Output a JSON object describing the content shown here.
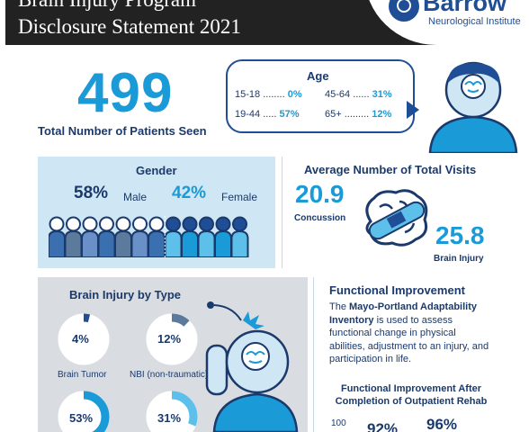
{
  "header": {
    "title_line1": "Brain Injury Program",
    "title_line2": "Disclosure Statement 2021",
    "logo_word": "Barrow",
    "logo_sub": "Neurological Institute"
  },
  "patients": {
    "total": "499",
    "label": "Total Number of Patients Seen"
  },
  "age": {
    "title": "Age",
    "groups": [
      {
        "range": "15-18 ........ ",
        "pct": "0%"
      },
      {
        "range": "45-64 ...... ",
        "pct": "31%"
      },
      {
        "range": "19-44 ..... ",
        "pct": "57%"
      },
      {
        "range": "65+ ......... ",
        "pct": "12%"
      }
    ]
  },
  "gender": {
    "title": "Gender",
    "male_pct": "58%",
    "male_label": "Male",
    "female_pct": "42%",
    "female_label": "Female",
    "people_count": 12,
    "male_people": 7,
    "colors": {
      "male": [
        "#3a6fb0",
        "#5b7a9c",
        "#6a90c8"
      ],
      "female": [
        "#1a9ad6",
        "#5cc0ea"
      ]
    }
  },
  "visits": {
    "title": "Average Number of Total Visits",
    "concussion_value": "20.9",
    "concussion_label": "Concussion",
    "brain_injury_value": "25.8",
    "brain_injury_label": "Brain Injury"
  },
  "injury_type": {
    "title": "Brain Injury by Type",
    "items": [
      {
        "pct": "4%",
        "value": 4,
        "label": "Brain Tumor"
      },
      {
        "pct": "12%",
        "value": 12,
        "label": "NBI (non-traumatic)"
      },
      {
        "pct": "53%",
        "value": 53,
        "label": ""
      },
      {
        "pct": "31%",
        "value": 31,
        "label": ""
      }
    ]
  },
  "functional": {
    "title": "Functional Improvement",
    "body_bold": "Mayo-Portland Adaptability Inventory",
    "body_pre": "The ",
    "body_post": " is used to assess functional change in physical abilities, adjustment to an injury, and participation in life.",
    "subtitle": "Functional Improvement After Completion of Outpatient Rehab",
    "axis_top": "100",
    "values": [
      "92%",
      "96%"
    ]
  },
  "colors": {
    "accent": "#1a9ad6",
    "navy": "#1b3a6b",
    "brand": "#1f4e96"
  }
}
